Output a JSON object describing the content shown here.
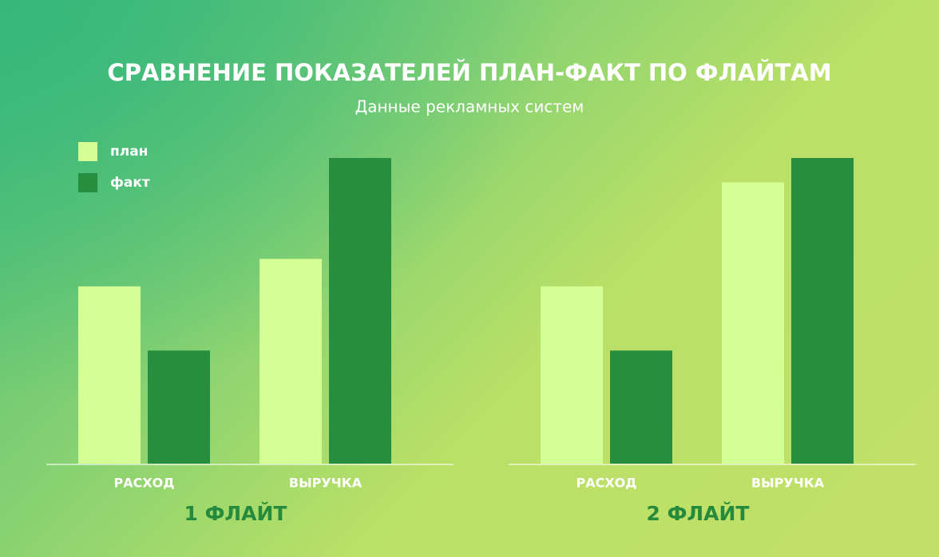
{
  "title": "СРАВНЕНИЕ ПОКАЗАТЕЛЕЙ ПЛАН-ФАКТ ПО ФЛАЙТАМ",
  "subtitle": "Данные рекламных систем",
  "chart_data": [
    {
      "type": "bar",
      "title": "1 ФЛАЙТ",
      "categories": [
        "РАСХОД",
        "ВЫРУЧКА"
      ],
      "ylim": [
        0,
        100
      ],
      "series": [
        {
          "name": "план",
          "color": "#d4ff94",
          "values": [
            58,
            67
          ]
        },
        {
          "name": "факт",
          "color": "#278e3f",
          "values": [
            37,
            100
          ]
        }
      ]
    },
    {
      "type": "bar",
      "title": "2 ФЛАЙТ",
      "categories": [
        "РАСХОД",
        "ВЫРУЧКА"
      ],
      "ylim": [
        0,
        100
      ],
      "series": [
        {
          "color": "#d4ff94",
          "values": [
            58,
            92
          ]
        },
        {
          "color": "#278e3f",
          "values": [
            37,
            100
          ]
        }
      ]
    }
  ]
}
